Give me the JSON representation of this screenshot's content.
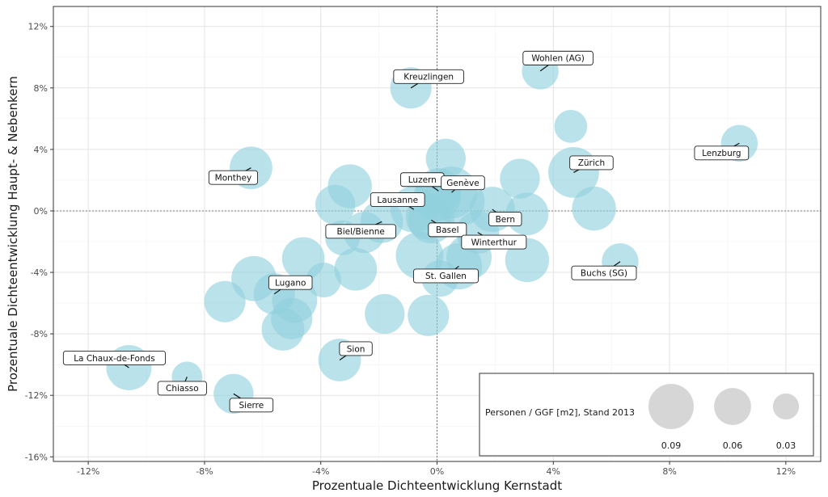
{
  "chart_data": {
    "type": "scatter",
    "xlabel": "Prozentuale Dichteentwicklung Kernstadt",
    "ylabel": "Prozentuale Dichteentwicklung Haupt- & Nebenkern",
    "xlim": [
      -13.2,
      13.2
    ],
    "ylim": [
      -16.3,
      13.3
    ],
    "x_ticks": [
      -12,
      -8,
      -4,
      0,
      4,
      8,
      12
    ],
    "y_ticks": [
      -16,
      -12,
      -8,
      -4,
      0,
      4,
      8,
      12
    ],
    "x_tick_labels": [
      "-12%",
      "-8%",
      "-4%",
      "0%",
      "4%",
      "8%",
      "12%"
    ],
    "y_tick_labels": [
      "-16%",
      "-12%",
      "-8%",
      "-4%",
      "0%",
      "4%",
      "8%",
      "12%"
    ],
    "grid": true,
    "reference_lines": {
      "x": 0,
      "y": 0,
      "style": "dotted"
    },
    "point_color": "#8fd0dd",
    "size_variable": "Personen / GGF [m2], Stand 2013",
    "legend": {
      "title": "Personen / GGF [m2], Stand 2013",
      "placement": "bottom-right",
      "sizes": [
        0.09,
        0.06,
        0.03
      ],
      "size_labels": [
        "0.09",
        "0.06",
        "0.03"
      ]
    },
    "labeled_points": [
      {
        "name": "Wohlen (AG)",
        "x": 3.55,
        "y": 9.1,
        "size": 0.03
      },
      {
        "name": "Kreuzlingen",
        "x": -0.9,
        "y": 8.0,
        "size": 0.045
      },
      {
        "name": "Lenzburg",
        "x": 10.4,
        "y": 4.4,
        "size": 0.03
      },
      {
        "name": "Monthey",
        "x": -6.4,
        "y": 2.8,
        "size": 0.05
      },
      {
        "name": "Zürich",
        "x": 4.7,
        "y": 2.5,
        "size": 0.085
      },
      {
        "name": "Luzern",
        "x": 0.05,
        "y": 1.3,
        "size": 0.06
      },
      {
        "name": "Lausanne",
        "x": -0.8,
        "y": 0.1,
        "size": 0.065
      },
      {
        "name": "Genève",
        "x": 0.5,
        "y": 1.2,
        "size": 0.09
      },
      {
        "name": "Bern",
        "x": 1.9,
        "y": 0.1,
        "size": 0.06
      },
      {
        "name": "Basel",
        "x": -0.2,
        "y": -0.6,
        "size": 0.065
      },
      {
        "name": "Biel/Bienne",
        "x": -1.9,
        "y": -0.7,
        "size": 0.05
      },
      {
        "name": "Winterthur",
        "x": 1.4,
        "y": -1.4,
        "size": 0.05
      },
      {
        "name": "St. Gallen",
        "x": 0.75,
        "y": -3.6,
        "size": 0.065
      },
      {
        "name": "Buchs (SG)",
        "x": 6.3,
        "y": -3.3,
        "size": 0.03
      },
      {
        "name": "Lugano",
        "x": -5.6,
        "y": -5.4,
        "size": 0.045
      },
      {
        "name": "Sion",
        "x": -3.35,
        "y": -9.7,
        "size": 0.05
      },
      {
        "name": "La Chaux-de-Fonds",
        "x": -10.6,
        "y": -10.2,
        "size": 0.06
      },
      {
        "name": "Chiasso",
        "x": -8.6,
        "y": -10.8,
        "size": 0.015
      },
      {
        "name": "Sierre",
        "x": -7.0,
        "y": -11.9,
        "size": 0.04
      }
    ],
    "other_points": [
      {
        "x": 0.3,
        "y": 3.4,
        "size": 0.04
      },
      {
        "x": 2.85,
        "y": 2.1,
        "size": 0.04
      },
      {
        "x": 4.6,
        "y": 5.5,
        "size": 0.02
      },
      {
        "x": -3.0,
        "y": 1.6,
        "size": 0.055
      },
      {
        "x": -3.5,
        "y": 0.4,
        "size": 0.04
      },
      {
        "x": 3.1,
        "y": -0.2,
        "size": 0.05
      },
      {
        "x": 5.4,
        "y": 0.15,
        "size": 0.055
      },
      {
        "x": -2.5,
        "y": -1.4,
        "size": 0.045
      },
      {
        "x": -3.25,
        "y": -1.75,
        "size": 0.025
      },
      {
        "x": 3.1,
        "y": -3.2,
        "size": 0.055
      },
      {
        "x": -4.6,
        "y": -3.1,
        "size": 0.05
      },
      {
        "x": -2.8,
        "y": -3.8,
        "size": 0.05
      },
      {
        "x": -0.6,
        "y": -2.9,
        "size": 0.07
      },
      {
        "x": 1.1,
        "y": -3.0,
        "size": 0.06
      },
      {
        "x": 0.1,
        "y": -4.4,
        "size": 0.03
      },
      {
        "x": -3.9,
        "y": -4.5,
        "size": 0.025
      },
      {
        "x": -6.3,
        "y": -4.4,
        "size": 0.06
      },
      {
        "x": -7.3,
        "y": -5.9,
        "size": 0.045
      },
      {
        "x": -4.9,
        "y": -5.8,
        "size": 0.06
      },
      {
        "x": -5.0,
        "y": -7.0,
        "size": 0.045
      },
      {
        "x": -5.3,
        "y": -7.7,
        "size": 0.05
      },
      {
        "x": -1.8,
        "y": -6.7,
        "size": 0.04
      },
      {
        "x": -0.3,
        "y": -6.8,
        "size": 0.045
      },
      {
        "x": 0.0,
        "y": 0.9,
        "size": 0.07
      },
      {
        "x": 0.8,
        "y": 0.6,
        "size": 0.075
      },
      {
        "x": -0.3,
        "y": -0.4,
        "size": 0.06
      }
    ]
  }
}
